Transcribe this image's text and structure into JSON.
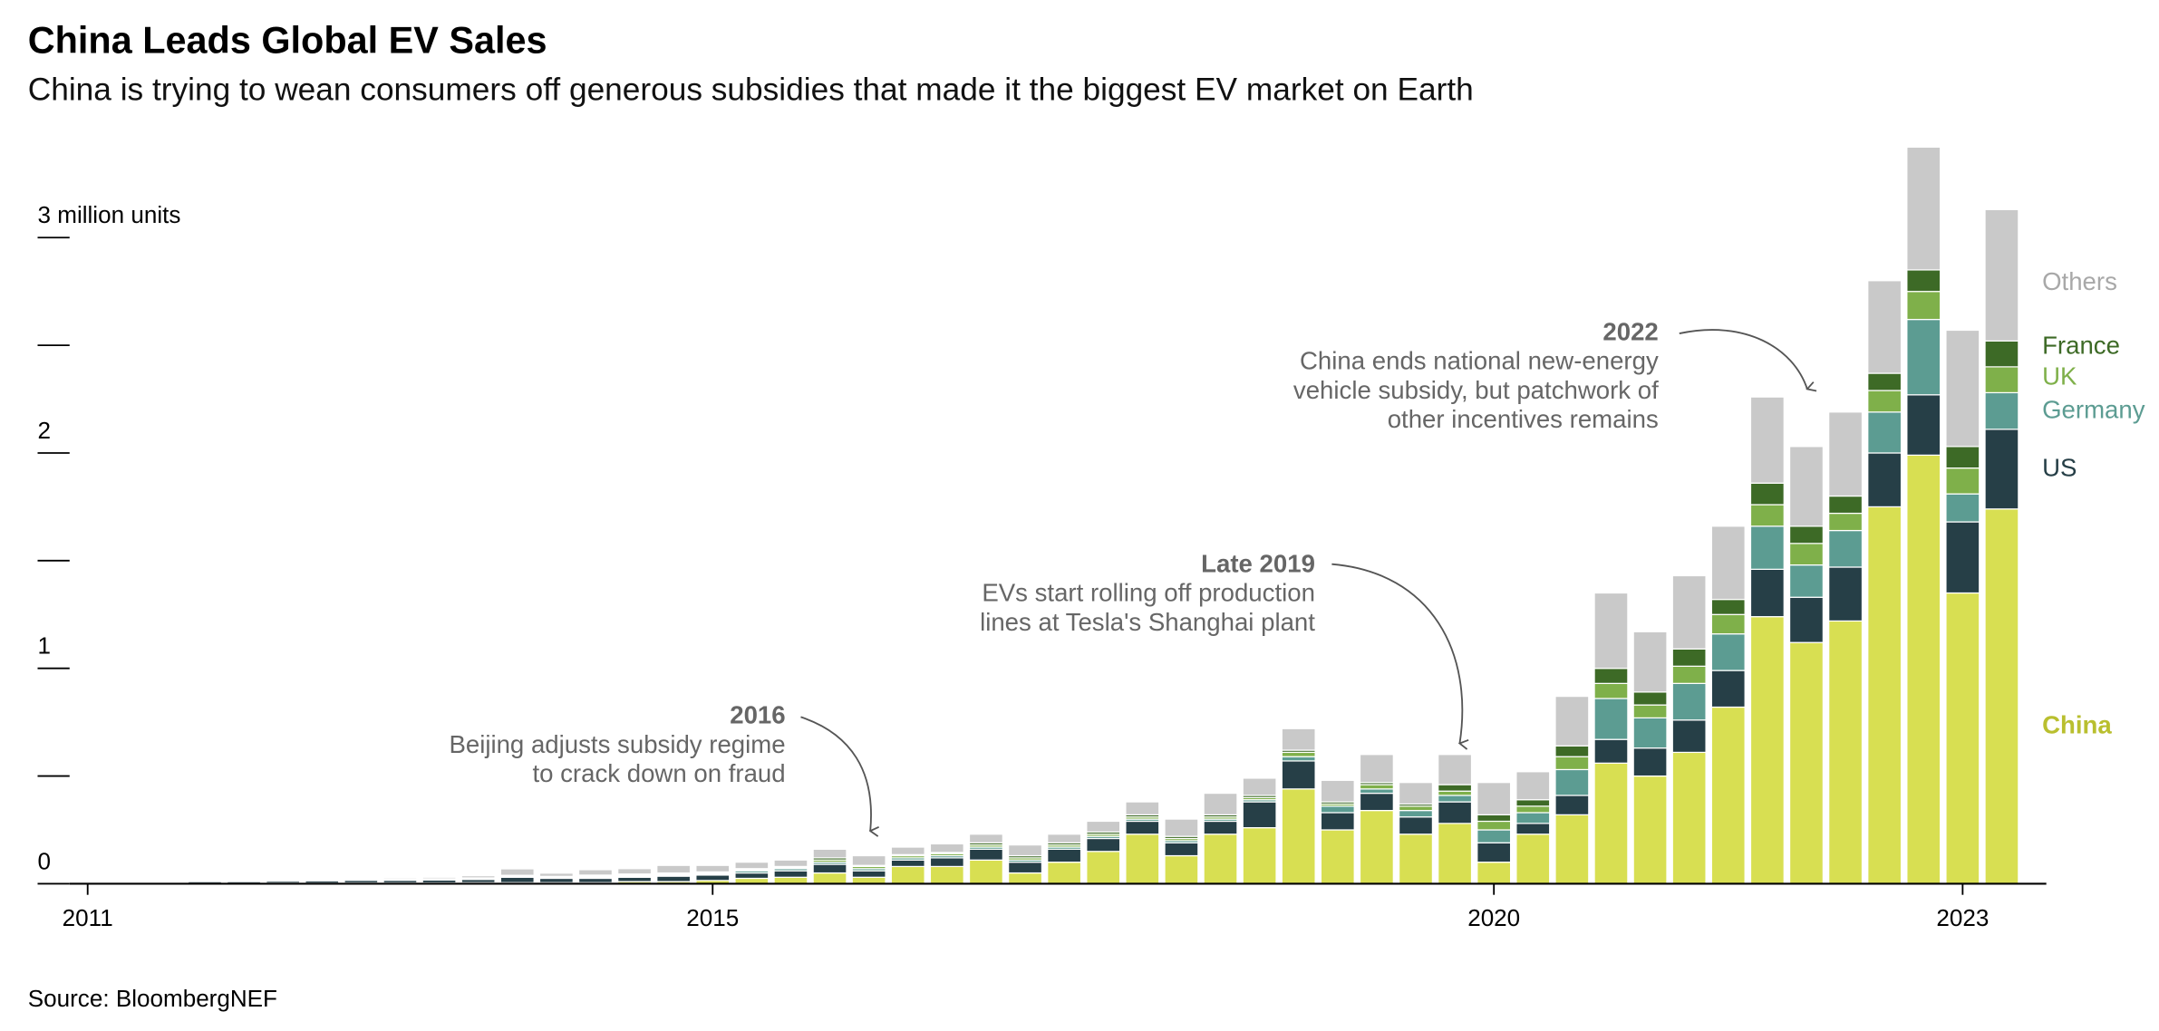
{
  "chart_data": {
    "type": "stacked_bar",
    "title": "China Leads Global EV Sales",
    "subtitle": "China is trying to wean consumers off generous subsidies that made it the biggest EV market on Earth",
    "source": "Source: BloombergNEF",
    "categories": [
      "2011",
      null,
      null,
      null,
      null,
      null,
      null,
      null,
      null,
      null,
      null,
      null,
      null,
      null,
      null,
      null,
      "2015",
      null,
      null,
      null,
      null,
      null,
      null,
      null,
      null,
      null,
      null,
      null,
      null,
      null,
      null,
      null,
      null,
      null,
      null,
      null,
      "2020",
      null,
      null,
      null,
      null,
      null,
      null,
      null,
      null,
      null,
      null,
      null,
      "2023",
      null
    ],
    "ylim": [
      0,
      3.5
    ],
    "yticks": [
      0,
      1,
      2,
      {
        "value": 3,
        "label": "3 million units"
      }
    ],
    "minor_yticks": [
      0.5,
      1.5,
      2.5
    ],
    "series": [
      {
        "name": "China",
        "color": "#d8df52",
        "values": [
          0.001,
          0.001,
          0.001,
          0.002,
          0.002,
          0.003,
          0.003,
          0.004,
          0.004,
          0.004,
          0.005,
          0.005,
          0.005,
          0.005,
          0.01,
          0.01,
          0.015,
          0.025,
          0.03,
          0.05,
          0.03,
          0.08,
          0.08,
          0.11,
          0.05,
          0.1,
          0.15,
          0.23,
          0.13,
          0.23,
          0.26,
          0.44,
          0.25,
          0.34,
          0.23,
          0.28,
          0.1,
          0.23,
          0.32,
          0.56,
          0.5,
          0.61,
          0.82,
          1.24,
          1.12,
          1.22,
          1.75,
          1.99,
          1.35,
          1.74
        ]
      },
      {
        "name": "US",
        "color": "#263f47",
        "values": [
          0.002,
          0.003,
          0.005,
          0.008,
          0.008,
          0.009,
          0.01,
          0.012,
          0.012,
          0.013,
          0.015,
          0.025,
          0.02,
          0.02,
          0.02,
          0.025,
          0.025,
          0.025,
          0.03,
          0.04,
          0.03,
          0.03,
          0.04,
          0.05,
          0.05,
          0.06,
          0.06,
          0.06,
          0.06,
          0.06,
          0.12,
          0.13,
          0.08,
          0.08,
          0.08,
          0.1,
          0.09,
          0.05,
          0.09,
          0.11,
          0.13,
          0.15,
          0.17,
          0.22,
          0.21,
          0.25,
          0.25,
          0.28,
          0.33,
          0.37
        ]
      },
      {
        "name": "Germany",
        "color": "#5c9c92",
        "values": [
          0,
          0,
          0,
          0,
          0.001,
          0.001,
          0.001,
          0.001,
          0.001,
          0.002,
          0.003,
          0.003,
          0.003,
          0.005,
          0.005,
          0.005,
          0.005,
          0.01,
          0.01,
          0.01,
          0.01,
          0.01,
          0.01,
          0.01,
          0.01,
          0.01,
          0.01,
          0.01,
          0.01,
          0.01,
          0.01,
          0.02,
          0.03,
          0.02,
          0.03,
          0.03,
          0.06,
          0.05,
          0.12,
          0.19,
          0.14,
          0.17,
          0.17,
          0.2,
          0.15,
          0.17,
          0.19,
          0.35,
          0.13,
          0.17
        ]
      },
      {
        "name": "UK",
        "color": "#7fb04a",
        "values": [
          0,
          0,
          0,
          0,
          0,
          0.001,
          0.001,
          0.001,
          0.001,
          0.002,
          0.002,
          0.003,
          0.003,
          0.005,
          0.005,
          0.005,
          0.005,
          0.005,
          0.005,
          0.01,
          0.01,
          0.01,
          0.01,
          0.01,
          0.01,
          0.01,
          0.01,
          0.01,
          0.01,
          0.01,
          0.01,
          0.02,
          0.01,
          0.02,
          0.02,
          0.02,
          0.04,
          0.03,
          0.06,
          0.07,
          0.06,
          0.08,
          0.09,
          0.1,
          0.1,
          0.08,
          0.1,
          0.13,
          0.12,
          0.12
        ]
      },
      {
        "name": "France",
        "color": "#3d6a26",
        "values": [
          0,
          0,
          0.001,
          0.001,
          0.001,
          0.001,
          0.001,
          0.002,
          0.002,
          0.002,
          0.002,
          0.003,
          0.003,
          0.005,
          0.005,
          0.005,
          0.005,
          0.005,
          0.005,
          0.01,
          0.005,
          0.005,
          0.005,
          0.01,
          0.01,
          0.01,
          0.01,
          0.01,
          0.01,
          0.01,
          0.01,
          0.01,
          0.01,
          0.01,
          0.01,
          0.03,
          0.03,
          0.03,
          0.05,
          0.07,
          0.06,
          0.08,
          0.07,
          0.1,
          0.08,
          0.08,
          0.08,
          0.1,
          0.1,
          0.12
        ]
      },
      {
        "name": "Others",
        "color": "#c9c9c9",
        "values": [
          0.001,
          0.002,
          0.003,
          0.003,
          0.003,
          0.004,
          0.005,
          0.005,
          0.006,
          0.007,
          0.01,
          0.03,
          0.015,
          0.025,
          0.025,
          0.035,
          0.03,
          0.03,
          0.03,
          0.04,
          0.045,
          0.035,
          0.04,
          0.04,
          0.05,
          0.04,
          0.05,
          0.06,
          0.08,
          0.1,
          0.08,
          0.1,
          0.1,
          0.13,
          0.1,
          0.14,
          0.15,
          0.13,
          0.23,
          0.35,
          0.28,
          0.34,
          0.34,
          0.4,
          0.37,
          0.39,
          0.43,
          0.57,
          0.54,
          0.61
        ]
      }
    ],
    "annotations": [
      {
        "title": "2016",
        "text": [
          "Beijing adjusts subsidy regime",
          "to crack down on fraud"
        ]
      },
      {
        "title": "Late 2019",
        "text": [
          "EVs start rolling off production",
          "lines at Tesla's Shanghai plant"
        ]
      },
      {
        "title": "2022",
        "text": [
          "China ends national new-energy",
          "vehicle subsidy, but patchwork of",
          "other incentives remains"
        ]
      }
    ]
  }
}
